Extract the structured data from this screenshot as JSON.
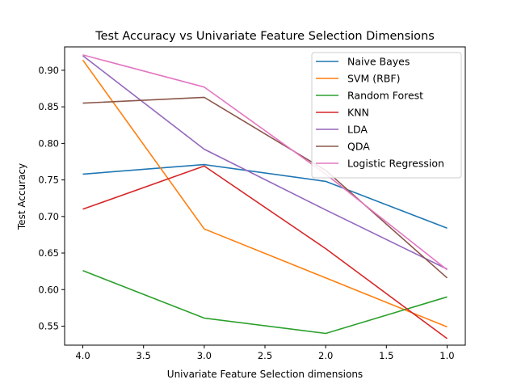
{
  "chart_data": {
    "type": "line",
    "title": "Test Accuracy vs Univariate Feature Selection Dimensions",
    "xlabel": "Univariate Feature Selection dimensions",
    "ylabel": "Test Accuracy",
    "x": [
      4.0,
      3.0,
      2.0,
      1.0
    ],
    "xlim": [
      4.15,
      0.85
    ],
    "ylim": [
      0.524,
      0.932
    ],
    "xticks": [
      4.0,
      3.5,
      3.0,
      2.5,
      2.0,
      1.5,
      1.0
    ],
    "xtick_labels": [
      "4.0",
      "3.5",
      "3.0",
      "2.5",
      "2.0",
      "1.5",
      "1.0"
    ],
    "yticks": [
      0.55,
      0.6,
      0.65,
      0.7,
      0.75,
      0.8,
      0.85,
      0.9
    ],
    "ytick_labels": [
      "0.55",
      "0.60",
      "0.65",
      "0.70",
      "0.75",
      "0.80",
      "0.85",
      "0.90"
    ],
    "grid": false,
    "legend_position": "top-right",
    "series": [
      {
        "name": "Naive Bayes",
        "color": "#1f77b4",
        "values": [
          0.758,
          0.771,
          0.748,
          0.684
        ]
      },
      {
        "name": "SVM (RBF)",
        "color": "#ff7f0e",
        "values": [
          0.914,
          0.683,
          0.616,
          0.549
        ]
      },
      {
        "name": "Random Forest",
        "color": "#2ca02c",
        "values": [
          0.626,
          0.561,
          0.54,
          0.59
        ]
      },
      {
        "name": "KNN",
        "color": "#d62728",
        "values": [
          0.71,
          0.769,
          0.656,
          0.533
        ]
      },
      {
        "name": "LDA",
        "color": "#9467bd",
        "values": [
          0.92,
          0.792,
          0.709,
          0.628
        ]
      },
      {
        "name": "QDA",
        "color": "#8c564b",
        "values": [
          0.855,
          0.863,
          0.763,
          0.616
        ]
      },
      {
        "name": "Logistic Regression",
        "color": "#e377c2",
        "values": [
          0.921,
          0.877,
          0.758,
          0.627
        ]
      }
    ]
  }
}
